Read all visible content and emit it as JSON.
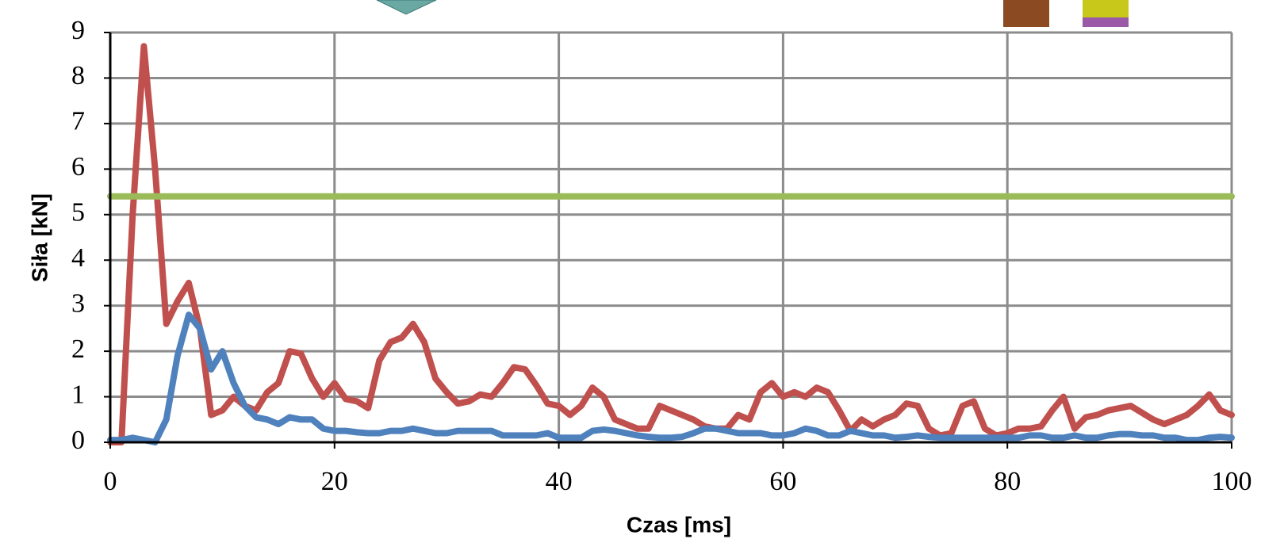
{
  "chart_data": {
    "type": "line",
    "x_label": "Czas [ms]",
    "y_label": "Siła [kN]",
    "x": [
      0,
      1,
      2,
      3,
      4,
      5,
      6,
      7,
      8,
      9,
      10,
      11,
      12,
      13,
      14,
      15,
      16,
      17,
      18,
      19,
      20,
      21,
      22,
      23,
      24,
      25,
      26,
      27,
      28,
      29,
      30,
      31,
      32,
      33,
      34,
      35,
      36,
      37,
      38,
      39,
      40,
      41,
      42,
      43,
      44,
      45,
      46,
      47,
      48,
      49,
      50,
      51,
      52,
      53,
      54,
      55,
      56,
      57,
      58,
      59,
      60,
      61,
      62,
      63,
      64,
      65,
      66,
      67,
      68,
      69,
      70,
      71,
      72,
      73,
      74,
      75,
      76,
      77,
      78,
      79,
      80,
      81,
      82,
      83,
      84,
      85,
      86,
      87,
      88,
      89,
      90,
      91,
      92,
      93,
      94,
      95,
      96,
      97,
      98,
      99,
      100
    ],
    "series": [
      {
        "color": "#c0504d",
        "values": [
          0,
          0,
          5,
          8.7,
          6,
          2.6,
          3.1,
          3.5,
          2.5,
          0.6,
          0.7,
          1.0,
          0.8,
          0.7,
          1.1,
          1.3,
          2.0,
          1.95,
          1.4,
          1.0,
          1.3,
          0.95,
          0.9,
          0.75,
          1.8,
          2.2,
          2.3,
          2.6,
          2.2,
          1.4,
          1.1,
          0.85,
          0.9,
          1.05,
          1.0,
          1.3,
          1.65,
          1.6,
          1.25,
          0.85,
          0.8,
          0.6,
          0.8,
          1.2,
          1.0,
          0.5,
          0.4,
          0.3,
          0.3,
          0.8,
          0.7,
          0.6,
          0.5,
          0.35,
          0.3,
          0.3,
          0.6,
          0.5,
          1.1,
          1.3,
          1.0,
          1.1,
          1.0,
          1.2,
          1.1,
          0.7,
          0.25,
          0.5,
          0.35,
          0.5,
          0.6,
          0.85,
          0.8,
          0.3,
          0.15,
          0.2,
          0.8,
          0.9,
          0.3,
          0.15,
          0.2,
          0.3,
          0.3,
          0.35,
          0.7,
          1.0,
          0.3,
          0.55,
          0.6,
          0.7,
          0.75,
          0.8,
          0.65,
          0.5,
          0.4,
          0.5,
          0.6,
          0.8,
          1.05,
          0.7,
          0.6
        ]
      },
      {
        "color": "#4f81bd",
        "values": [
          0.05,
          0.05,
          0.1,
          0.05,
          0,
          0.5,
          1.9,
          2.8,
          2.5,
          1.6,
          2.0,
          1.3,
          0.8,
          0.55,
          0.5,
          0.4,
          0.55,
          0.5,
          0.5,
          0.3,
          0.25,
          0.25,
          0.22,
          0.2,
          0.2,
          0.25,
          0.25,
          0.3,
          0.25,
          0.2,
          0.2,
          0.25,
          0.25,
          0.25,
          0.25,
          0.15,
          0.15,
          0.15,
          0.15,
          0.2,
          0.1,
          0.1,
          0.1,
          0.25,
          0.28,
          0.25,
          0.2,
          0.15,
          0.12,
          0.1,
          0.1,
          0.12,
          0.2,
          0.3,
          0.3,
          0.25,
          0.2,
          0.2,
          0.2,
          0.15,
          0.15,
          0.2,
          0.3,
          0.25,
          0.15,
          0.15,
          0.25,
          0.2,
          0.15,
          0.15,
          0.1,
          0.12,
          0.15,
          0.12,
          0.1,
          0.1,
          0.1,
          0.1,
          0.1,
          0.1,
          0.1,
          0.1,
          0.15,
          0.15,
          0.1,
          0.1,
          0.15,
          0.1,
          0.1,
          0.15,
          0.18,
          0.18,
          0.15,
          0.15,
          0.1,
          0.1,
          0.05,
          0.05,
          0.1,
          0.12,
          0.1
        ]
      },
      {
        "color": "#9bbb59",
        "x": [
          0,
          100
        ],
        "values": [
          5.4,
          5.4
        ]
      }
    ],
    "xlim": [
      0,
      100
    ],
    "xticks": [
      0,
      20,
      40,
      60,
      80,
      100
    ],
    "ylim": [
      0,
      9
    ],
    "yticks": [
      0,
      1,
      2,
      3,
      4,
      5,
      6,
      7,
      8,
      9
    ],
    "grid": true
  }
}
